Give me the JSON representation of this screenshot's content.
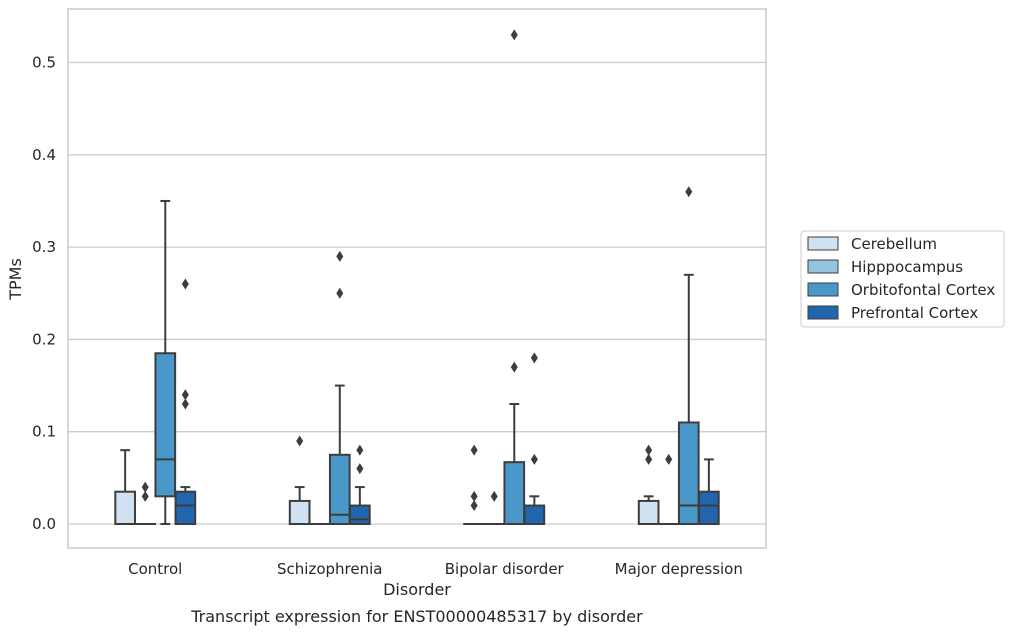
{
  "chart_data": {
    "type": "box",
    "xlabel": "Disorder",
    "ylabel": "TPMs",
    "caption": "Transcript expression for ENST00000485317 by disorder",
    "ylim": [
      -0.026,
      0.558
    ],
    "yticks": [
      "0.0",
      "0.1",
      "0.2",
      "0.3",
      "0.4",
      "0.5"
    ],
    "ytick_values": [
      0.0,
      0.1,
      0.2,
      0.3,
      0.4,
      0.5
    ],
    "grid": true,
    "legend_position": "right",
    "categories": [
      "Control",
      "Schizophrenia",
      "Bipolar disorder",
      "Major depression"
    ],
    "series": [
      {
        "name": "Cerebellum",
        "color": "#d0e1f2",
        "boxes": [
          {
            "q1": 0.0,
            "median": 0.0,
            "q3": 0.035,
            "whisker_low": 0.0,
            "whisker_high": 0.08,
            "outliers": []
          },
          {
            "q1": 0.0,
            "median": 0.0,
            "q3": 0.025,
            "whisker_low": 0.0,
            "whisker_high": 0.04,
            "outliers": [
              0.09
            ]
          },
          {
            "q1": 0.0,
            "median": 0.0,
            "q3": 0.0,
            "whisker_low": 0.0,
            "whisker_high": 0.0,
            "outliers": [
              0.08,
              0.03,
              0.02
            ]
          },
          {
            "q1": 0.0,
            "median": 0.0,
            "q3": 0.025,
            "whisker_low": 0.0,
            "whisker_high": 0.03,
            "outliers": [
              0.08,
              0.07
            ]
          }
        ]
      },
      {
        "name": "Hipppocampus",
        "color": "#94c4df",
        "boxes": [
          {
            "q1": 0.0,
            "median": 0.0,
            "q3": 0.0,
            "whisker_low": 0.0,
            "whisker_high": 0.0,
            "outliers": [
              0.04,
              0.03
            ]
          },
          {
            "q1": 0.0,
            "median": 0.0,
            "q3": 0.0,
            "whisker_low": 0.0,
            "whisker_high": 0.0,
            "outliers": []
          },
          {
            "q1": 0.0,
            "median": 0.0,
            "q3": 0.0,
            "whisker_low": 0.0,
            "whisker_high": 0.0,
            "outliers": [
              0.03
            ]
          },
          {
            "q1": 0.0,
            "median": 0.0,
            "q3": 0.0,
            "whisker_low": 0.0,
            "whisker_high": 0.0,
            "outliers": [
              0.07
            ]
          }
        ]
      },
      {
        "name": "Orbitofontal Cortex",
        "color": "#4a98c9",
        "boxes": [
          {
            "q1": 0.03,
            "median": 0.07,
            "q3": 0.185,
            "whisker_low": 0.0,
            "whisker_high": 0.35,
            "outliers": []
          },
          {
            "q1": 0.0,
            "median": 0.01,
            "q3": 0.075,
            "whisker_low": 0.0,
            "whisker_high": 0.15,
            "outliers": [
              0.29,
              0.25
            ]
          },
          {
            "q1": 0.0,
            "median": 0.0,
            "q3": 0.067,
            "whisker_low": 0.0,
            "whisker_high": 0.13,
            "outliers": [
              0.53,
              0.17
            ]
          },
          {
            "q1": 0.0,
            "median": 0.02,
            "q3": 0.11,
            "whisker_low": 0.0,
            "whisker_high": 0.27,
            "outliers": [
              0.36
            ]
          }
        ]
      },
      {
        "name": "Prefrontal Cortex",
        "color": "#2166ac",
        "boxes": [
          {
            "q1": 0.0,
            "median": 0.02,
            "q3": 0.035,
            "whisker_low": 0.0,
            "whisker_high": 0.04,
            "outliers": [
              0.26,
              0.14,
              0.13
            ]
          },
          {
            "q1": 0.0,
            "median": 0.005,
            "q3": 0.02,
            "whisker_low": 0.0,
            "whisker_high": 0.04,
            "outliers": [
              0.08,
              0.06
            ]
          },
          {
            "q1": 0.0,
            "median": 0.0,
            "q3": 0.02,
            "whisker_low": 0.0,
            "whisker_high": 0.03,
            "outliers": [
              0.18,
              0.07
            ]
          },
          {
            "q1": 0.0,
            "median": 0.02,
            "q3": 0.035,
            "whisker_low": 0.0,
            "whisker_high": 0.07,
            "outliers": []
          }
        ]
      }
    ]
  }
}
